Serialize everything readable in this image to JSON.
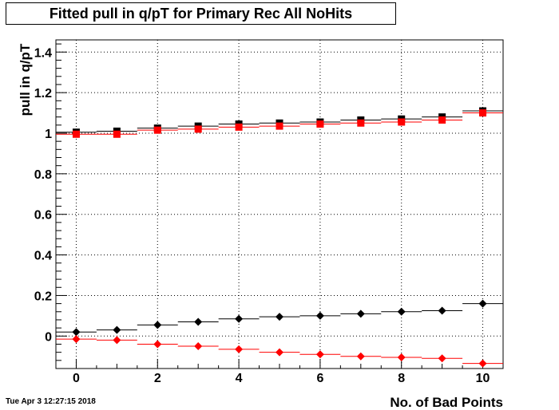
{
  "title": "Fitted pull in q/pT  for Primary Rec All NoHits",
  "timestamp": "Tue Apr  3 12:27:15 2018",
  "chart_data": {
    "type": "scatter",
    "xlabel": "No. of Bad Points",
    "ylabel": "pull in q/pT",
    "xlim": [
      -0.5,
      10.5
    ],
    "ylim": [
      -0.16,
      1.46
    ],
    "x_ticks": [
      0,
      2,
      4,
      6,
      8,
      10
    ],
    "y_ticks": [
      0,
      0.2,
      0.4,
      0.6,
      0.8,
      1,
      1.2,
      1.4
    ],
    "y_tick_labels": [
      "0",
      "0.2",
      "0.4",
      "0.6",
      "0.8",
      "1",
      "1.2",
      "1.4"
    ],
    "grid": true,
    "legend": "none",
    "x": [
      0,
      1,
      2,
      3,
      4,
      5,
      6,
      7,
      8,
      9,
      10
    ],
    "series": [
      {
        "marker": "square",
        "color": "#000000",
        "values": [
          1.005,
          1.01,
          1.025,
          1.035,
          1.045,
          1.05,
          1.055,
          1.065,
          1.07,
          1.08,
          1.11
        ]
      },
      {
        "marker": "square",
        "color": "#ff0000",
        "values": [
          0.995,
          0.995,
          1.015,
          1.02,
          1.03,
          1.035,
          1.045,
          1.05,
          1.055,
          1.065,
          1.1
        ]
      },
      {
        "marker": "diamond",
        "color": "#000000",
        "values": [
          0.02,
          0.03,
          0.055,
          0.07,
          0.085,
          0.095,
          0.1,
          0.11,
          0.12,
          0.125,
          0.16
        ]
      },
      {
        "marker": "diamond",
        "color": "#ff0000",
        "values": [
          -0.015,
          -0.02,
          -0.04,
          -0.05,
          -0.065,
          -0.08,
          -0.09,
          -0.1,
          -0.105,
          -0.11,
          -0.135
        ]
      }
    ]
  }
}
